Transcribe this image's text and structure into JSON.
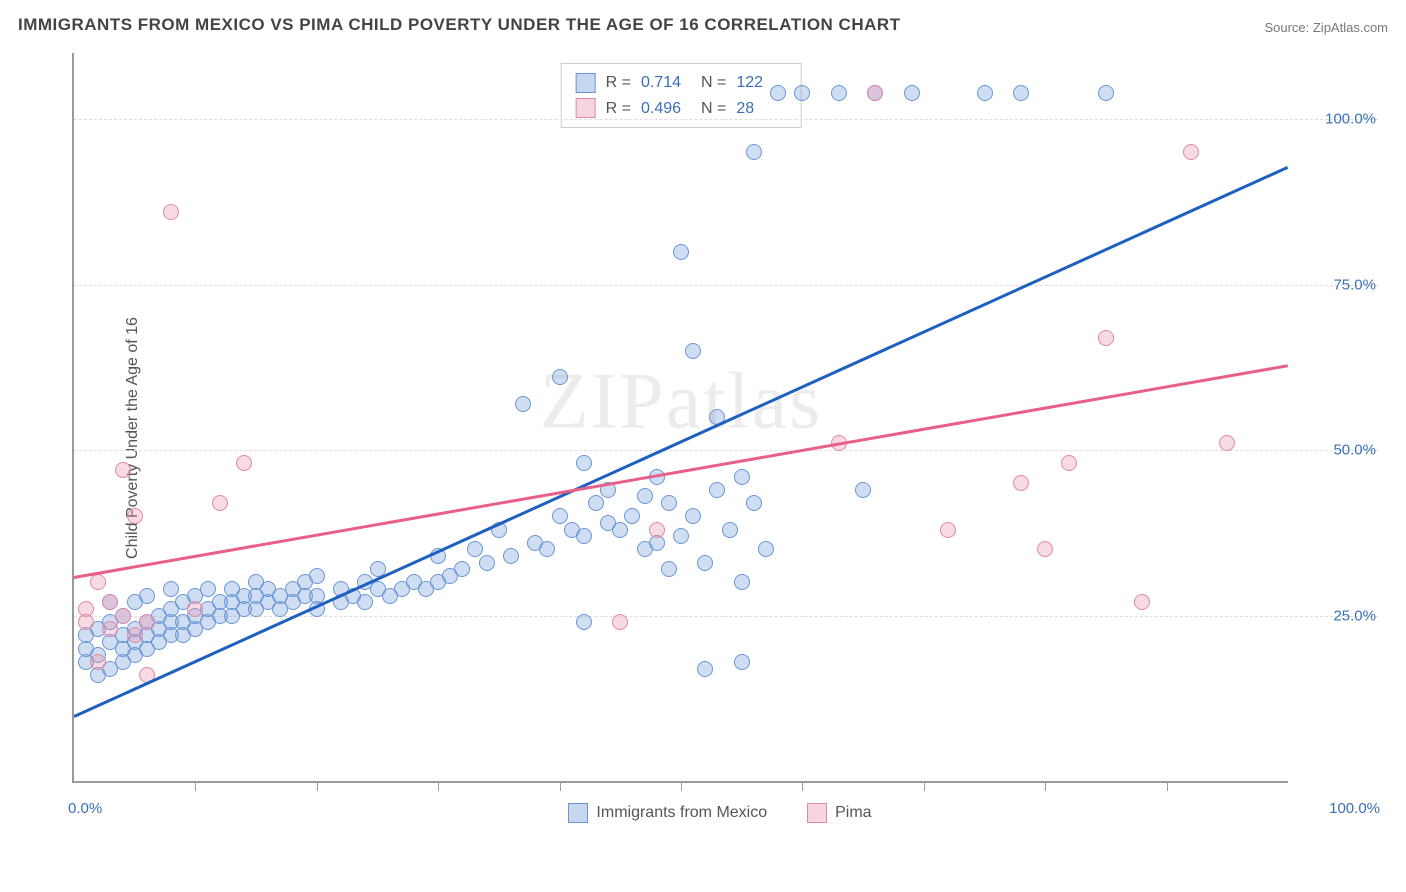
{
  "title": "IMMIGRANTS FROM MEXICO VS PIMA CHILD POVERTY UNDER THE AGE OF 16 CORRELATION CHART",
  "source": "Source: ZipAtlas.com",
  "y_axis_label": "Child Poverty Under the Age of 16",
  "watermark": "ZIPatlas",
  "chart": {
    "type": "scatter_with_regression",
    "xlim": [
      0,
      100
    ],
    "ylim": [
      0,
      110
    ],
    "y_ticks": [
      {
        "v": 25,
        "label": "25.0%"
      },
      {
        "v": 50,
        "label": "50.0%"
      },
      {
        "v": 75,
        "label": "75.0%"
      },
      {
        "v": 100,
        "label": "100.0%"
      }
    ],
    "x_tick_positions": [
      10,
      20,
      30,
      40,
      50,
      60,
      70,
      80,
      90
    ],
    "x_tick_labels": [
      {
        "pos": 0,
        "label": "0.0%"
      },
      {
        "pos": 100,
        "label": "100.0%"
      }
    ],
    "grid_color": "#dddddd",
    "axis_color": "#999999",
    "background_color": "#ffffff",
    "marker_radius": 8,
    "marker_stroke_width": 1.2,
    "series": [
      {
        "name": "Immigrants from Mexico",
        "fill": "rgba(120,160,220,0.35)",
        "stroke": "#6a96d6",
        "swatch_fill": "#c7d7f0",
        "swatch_border": "#6a96d6",
        "trend_color": "#1f5fbf",
        "R": "0.714",
        "N": "122",
        "trend_start": {
          "x": 0,
          "y": 10
        },
        "trend_end": {
          "x": 100,
          "y": 93
        },
        "points": [
          [
            1,
            18
          ],
          [
            1,
            20
          ],
          [
            1,
            22
          ],
          [
            2,
            16
          ],
          [
            2,
            19
          ],
          [
            2,
            23
          ],
          [
            3,
            17
          ],
          [
            3,
            21
          ],
          [
            3,
            24
          ],
          [
            3,
            27
          ],
          [
            4,
            18
          ],
          [
            4,
            20
          ],
          [
            4,
            22
          ],
          [
            4,
            25
          ],
          [
            5,
            19
          ],
          [
            5,
            21
          ],
          [
            5,
            23
          ],
          [
            5,
            27
          ],
          [
            6,
            20
          ],
          [
            6,
            22
          ],
          [
            6,
            24
          ],
          [
            6,
            28
          ],
          [
            7,
            21
          ],
          [
            7,
            23
          ],
          [
            7,
            25
          ],
          [
            8,
            22
          ],
          [
            8,
            24
          ],
          [
            8,
            26
          ],
          [
            8,
            29
          ],
          [
            9,
            22
          ],
          [
            9,
            24
          ],
          [
            9,
            27
          ],
          [
            10,
            23
          ],
          [
            10,
            25
          ],
          [
            10,
            28
          ],
          [
            11,
            24
          ],
          [
            11,
            26
          ],
          [
            11,
            29
          ],
          [
            12,
            25
          ],
          [
            12,
            27
          ],
          [
            13,
            25
          ],
          [
            13,
            27
          ],
          [
            13,
            29
          ],
          [
            14,
            26
          ],
          [
            14,
            28
          ],
          [
            15,
            26
          ],
          [
            15,
            28
          ],
          [
            15,
            30
          ],
          [
            16,
            27
          ],
          [
            16,
            29
          ],
          [
            17,
            26
          ],
          [
            17,
            28
          ],
          [
            18,
            27
          ],
          [
            18,
            29
          ],
          [
            19,
            28
          ],
          [
            19,
            30
          ],
          [
            20,
            26
          ],
          [
            20,
            28
          ],
          [
            20,
            31
          ],
          [
            22,
            27
          ],
          [
            22,
            29
          ],
          [
            23,
            28
          ],
          [
            24,
            27
          ],
          [
            24,
            30
          ],
          [
            25,
            29
          ],
          [
            25,
            32
          ],
          [
            26,
            28
          ],
          [
            27,
            29
          ],
          [
            28,
            30
          ],
          [
            29,
            29
          ],
          [
            30,
            30
          ],
          [
            30,
            34
          ],
          [
            31,
            31
          ],
          [
            32,
            32
          ],
          [
            33,
            35
          ],
          [
            34,
            33
          ],
          [
            35,
            38
          ],
          [
            36,
            34
          ],
          [
            37,
            57
          ],
          [
            38,
            36
          ],
          [
            39,
            35
          ],
          [
            40,
            40
          ],
          [
            40,
            61
          ],
          [
            41,
            38
          ],
          [
            42,
            37
          ],
          [
            42,
            48
          ],
          [
            43,
            42
          ],
          [
            44,
            39
          ],
          [
            44,
            44
          ],
          [
            45,
            38
          ],
          [
            46,
            40
          ],
          [
            47,
            35
          ],
          [
            47,
            43
          ],
          [
            48,
            36
          ],
          [
            48,
            46
          ],
          [
            49,
            32
          ],
          [
            49,
            42
          ],
          [
            50,
            80
          ],
          [
            50,
            37
          ],
          [
            51,
            40
          ],
          [
            51,
            65
          ],
          [
            52,
            17
          ],
          [
            52,
            33
          ],
          [
            53,
            44
          ],
          [
            53,
            55
          ],
          [
            54,
            38
          ],
          [
            55,
            30
          ],
          [
            55,
            46
          ],
          [
            56,
            95
          ],
          [
            56,
            42
          ],
          [
            57,
            35
          ],
          [
            58,
            104
          ],
          [
            60,
            104
          ],
          [
            63,
            104
          ],
          [
            65,
            44
          ],
          [
            66,
            104
          ],
          [
            69,
            104
          ],
          [
            75,
            104
          ],
          [
            78,
            104
          ],
          [
            85,
            104
          ],
          [
            55,
            18
          ],
          [
            42,
            24
          ]
        ]
      },
      {
        "name": "Pima",
        "fill": "rgba(235,150,175,0.35)",
        "stroke": "#e08aa5",
        "swatch_fill": "#f6d5e0",
        "swatch_border": "#e08aa5",
        "trend_color": "#e85f8a",
        "R": "0.496",
        "N": "28",
        "trend_start": {
          "x": 0,
          "y": 31
        },
        "trend_end": {
          "x": 100,
          "y": 63
        },
        "points": [
          [
            1,
            26
          ],
          [
            1,
            24
          ],
          [
            2,
            18
          ],
          [
            2,
            30
          ],
          [
            3,
            23
          ],
          [
            3,
            27
          ],
          [
            4,
            25
          ],
          [
            4,
            47
          ],
          [
            5,
            22
          ],
          [
            5,
            40
          ],
          [
            6,
            24
          ],
          [
            6,
            16
          ],
          [
            8,
            86
          ],
          [
            10,
            26
          ],
          [
            12,
            42
          ],
          [
            14,
            48
          ],
          [
            45,
            24
          ],
          [
            48,
            38
          ],
          [
            63,
            51
          ],
          [
            66,
            104
          ],
          [
            72,
            38
          ],
          [
            78,
            45
          ],
          [
            80,
            35
          ],
          [
            82,
            48
          ],
          [
            85,
            67
          ],
          [
            88,
            27
          ],
          [
            92,
            95
          ],
          [
            95,
            51
          ]
        ]
      }
    ],
    "stats_labels": {
      "R": "R =",
      "N": "N ="
    }
  },
  "legend": {
    "series1": "Immigrants from Mexico",
    "series2": "Pima"
  }
}
